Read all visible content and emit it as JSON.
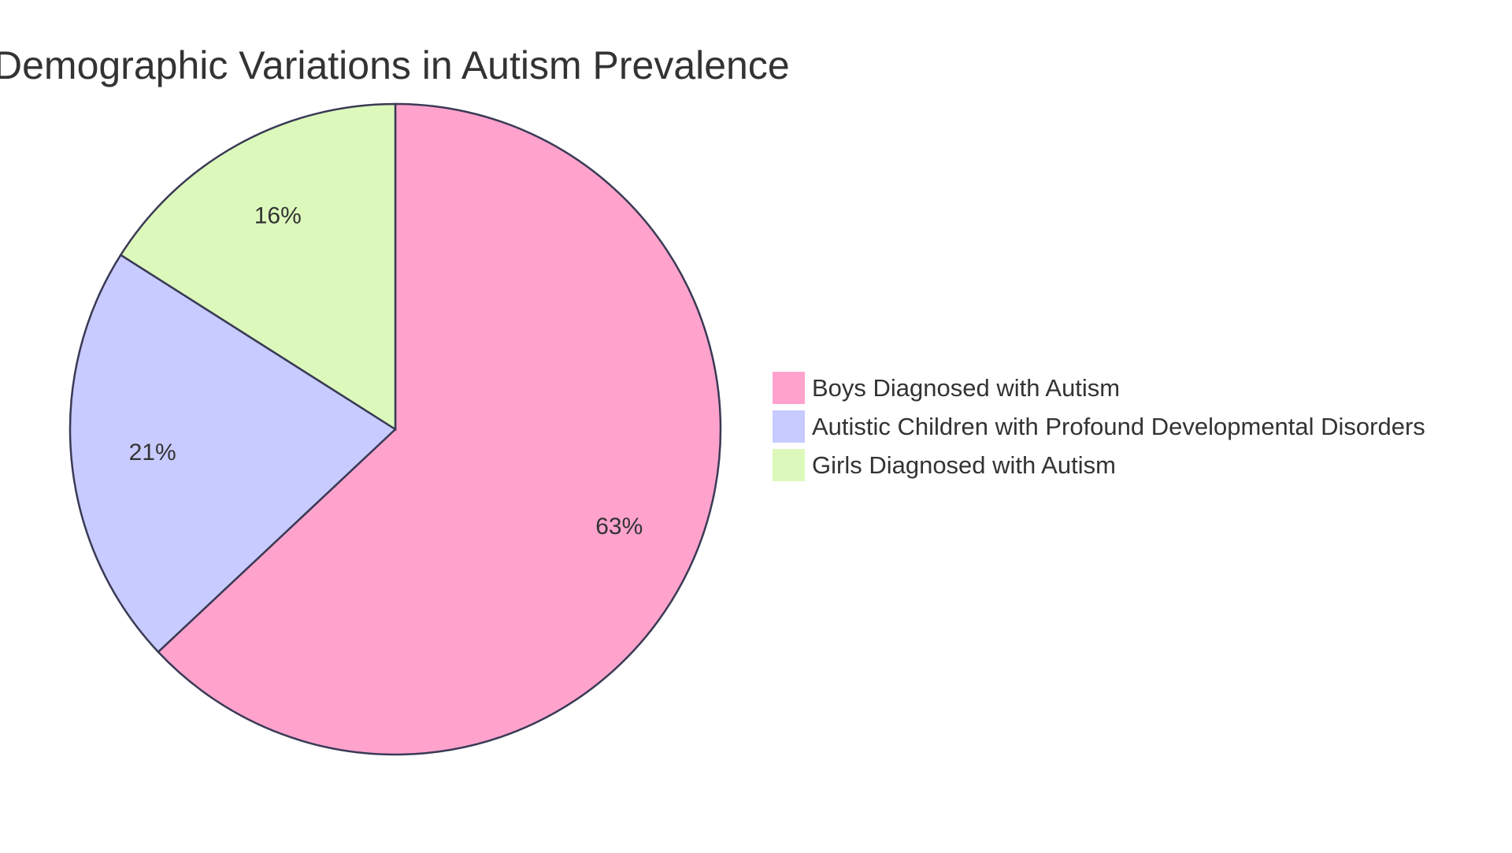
{
  "chart_data": {
    "type": "pie",
    "title": "Demographic Variations in Autism Prevalence",
    "categories": [
      "Boys Diagnosed with Autism",
      "Autistic Children with Profound Developmental Disorders",
      "Girls Diagnosed with Autism"
    ],
    "values": [
      63,
      21,
      16
    ],
    "labels": [
      "63%",
      "21%",
      "16%"
    ],
    "colors": [
      "#FFA3CD",
      "#C8CBFF",
      "#DCF9BB"
    ],
    "stroke": "#3A3A55",
    "legend_position": "right"
  }
}
